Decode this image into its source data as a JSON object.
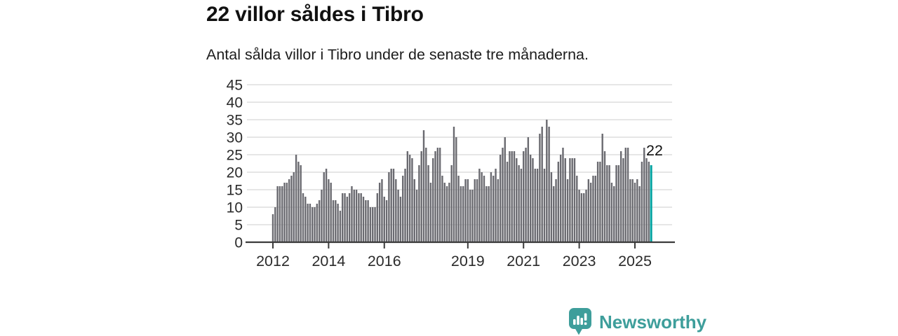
{
  "header": {
    "title": "22 villor såldes i Tibro",
    "subtitle": "Antal sålda villor i Tibro under de senaste tre månaderna."
  },
  "annotation": {
    "label": "22"
  },
  "logo": {
    "text": "Newsworthy",
    "icon": "bar-chart-speech-bubble-icon"
  },
  "colors": {
    "bar": "#6a6a70",
    "highlight": "#00a2a0",
    "logo_teal": "#3e9e9b",
    "axis": "#3b3b3b",
    "gridline": "#d8d8d8",
    "text": "#2b2b2b"
  },
  "chart_data": {
    "type": "bar",
    "title": "22 villor såldes i Tibro",
    "subtitle": "Antal sålda villor i Tibro under de senaste tre månaderna.",
    "x_unit": "month",
    "x_start_label": "2012",
    "ylim": [
      0,
      45
    ],
    "yticks": [
      0,
      5,
      10,
      15,
      20,
      25,
      30,
      35,
      40,
      45
    ],
    "xticks": [
      {
        "label": "2012",
        "month": 0
      },
      {
        "label": "2014",
        "month": 24
      },
      {
        "label": "2016",
        "month": 48
      },
      {
        "label": "2019",
        "month": 84
      },
      {
        "label": "2021",
        "month": 108
      },
      {
        "label": "2023",
        "month": 132
      },
      {
        "label": "2025",
        "month": 156
      }
    ],
    "grid": true,
    "legend": false,
    "values": [
      8,
      10,
      16,
      16,
      16,
      17,
      17,
      18,
      19,
      20,
      25,
      23,
      22,
      14,
      13,
      11,
      11,
      10,
      10,
      11,
      12,
      15,
      20,
      21,
      18,
      17,
      12,
      12,
      11,
      9,
      14,
      14,
      13,
      14,
      16,
      15,
      15,
      14,
      14,
      13,
      12,
      12,
      10,
      10,
      10,
      14,
      17,
      18,
      13,
      12,
      20,
      21,
      21,
      18,
      15,
      13,
      19,
      21,
      26,
      25,
      24,
      18,
      15,
      22,
      26,
      32,
      27,
      22,
      17,
      24,
      26,
      27,
      27,
      19,
      17,
      16,
      17,
      22,
      33,
      30,
      19,
      16,
      16,
      18,
      18,
      15,
      15,
      18,
      18,
      21,
      20,
      19,
      16,
      16,
      20,
      19,
      21,
      18,
      25,
      27,
      30,
      23,
      26,
      26,
      26,
      24,
      22,
      21,
      26,
      27,
      30,
      25,
      24,
      21,
      21,
      31,
      33,
      21,
      35,
      33,
      20,
      16,
      18,
      23,
      25,
      27,
      24,
      18,
      24,
      24,
      24,
      19,
      15,
      14,
      14,
      15,
      18,
      17,
      19,
      19,
      23,
      23,
      31,
      26,
      22,
      22,
      17,
      16,
      22,
      22,
      26,
      24,
      27,
      27,
      18,
      18,
      17,
      18,
      16,
      23,
      27,
      24,
      23,
      22
    ],
    "highlight": {
      "index": 163,
      "value": 22,
      "label": "22"
    }
  }
}
